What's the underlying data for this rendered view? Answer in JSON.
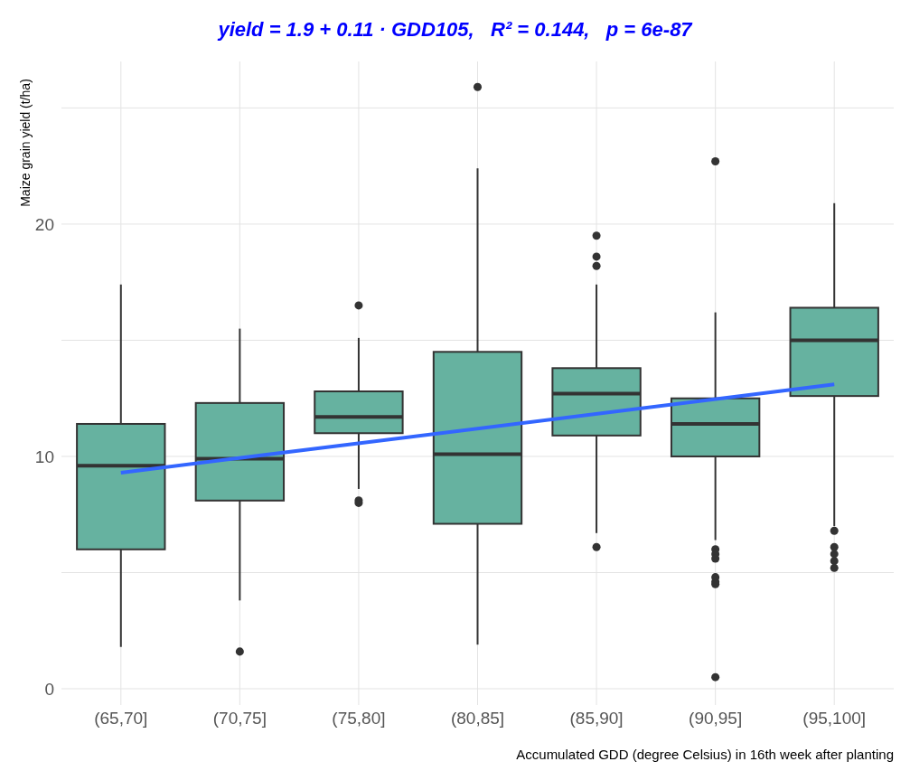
{
  "chart_data": {
    "type": "box",
    "title": "yield = 1.9 + 0.11 · GDD105,   R² = 0.144,   p = 6e-87",
    "xlabel": "Accumulated GDD (degree Celsius) in 16th week after planting",
    "ylabel": "Maize grain yield (t/ha)",
    "categories": [
      "(65,70]",
      "(70,75]",
      "(75,80]",
      "(80,85]",
      "(85,90]",
      "(90,95]",
      "(95,100]"
    ],
    "color": "#66b2a0",
    "boxes": [
      {
        "low": 1.8,
        "q1": 6.0,
        "median": 9.6,
        "q3": 11.4,
        "high": 17.4
      },
      {
        "low": 3.8,
        "q1": 8.1,
        "median": 9.9,
        "q3": 12.3,
        "high": 15.5,
        "outliers": [
          1.6
        ]
      },
      {
        "low": 8.6,
        "q1": 11.0,
        "median": 11.7,
        "q3": 12.8,
        "high": 15.1,
        "outliers": [
          16.5,
          8.1,
          8.0
        ]
      },
      {
        "low": 1.9,
        "q1": 7.1,
        "median": 10.1,
        "q3": 14.5,
        "high": 22.4,
        "outliers": [
          25.9
        ]
      },
      {
        "low": 6.7,
        "q1": 10.9,
        "median": 12.7,
        "q3": 13.8,
        "high": 17.4,
        "outliers": [
          19.5,
          18.6,
          18.2,
          6.1
        ]
      },
      {
        "low": 6.4,
        "q1": 10.0,
        "median": 11.4,
        "q3": 12.5,
        "high": 16.2,
        "outliers": [
          22.7,
          6.0,
          5.8,
          5.6,
          4.8,
          4.6,
          4.5,
          0.5
        ]
      },
      {
        "low": 7.0,
        "q1": 12.6,
        "median": 15.0,
        "q3": 16.4,
        "high": 20.9,
        "outliers": [
          6.8,
          6.1,
          5.8,
          5.5,
          5.2
        ]
      }
    ],
    "series": [
      {
        "type": "line",
        "x": [
          "(65,70]",
          "(95,100]"
        ],
        "values": [
          9.3,
          13.1
        ],
        "color": "#3366ff"
      }
    ],
    "ylim": [
      -0.7,
      27
    ],
    "yticks": [
      {
        "value": 0,
        "label": "0"
      },
      {
        "value": 5,
        "label": null
      },
      {
        "value": 10,
        "label": "10"
      },
      {
        "value": 15,
        "label": null
      },
      {
        "value": 20,
        "label": "20"
      },
      {
        "value": 25,
        "label": null
      }
    ],
    "grid": true
  }
}
